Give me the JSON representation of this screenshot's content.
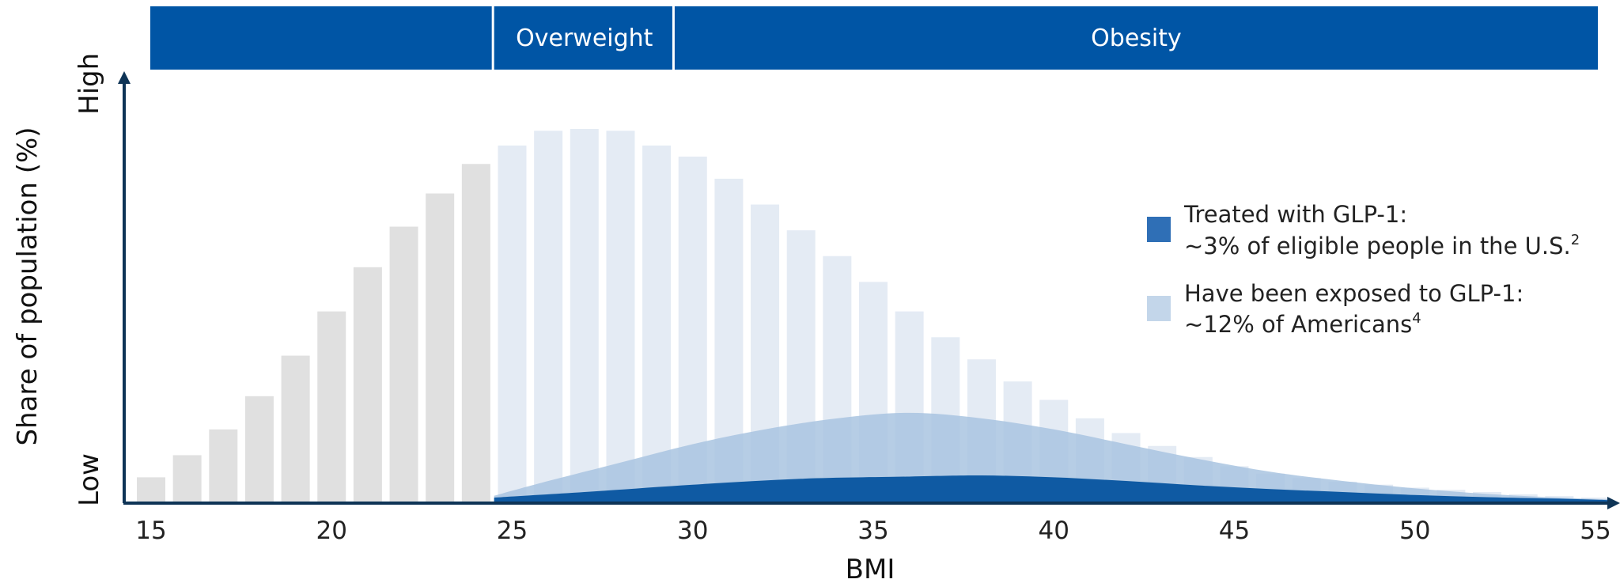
{
  "chart_data": {
    "type": "bar",
    "xlabel": "BMI",
    "ylabel": "Share of population (%)",
    "y_scale_labels": {
      "low": "Low",
      "high": "High"
    },
    "xlim": [
      14.5,
      55.4
    ],
    "ylim": [
      0,
      100
    ],
    "x_ticks": [
      15,
      20,
      25,
      30,
      35,
      40,
      45,
      50,
      55
    ],
    "categories_header": [
      {
        "label": "",
        "from": 14.5,
        "to": 24.5
      },
      {
        "label": "Overweight",
        "from": 24.5,
        "to": 29.5
      },
      {
        "label": "Obesity",
        "from": 29.5,
        "to": 55.4
      }
    ],
    "distribution": {
      "x": [
        15,
        16,
        17,
        18,
        19,
        20,
        21,
        22,
        23,
        24,
        25,
        26,
        27,
        28,
        29,
        30,
        31,
        32,
        33,
        34,
        35,
        36,
        37,
        38,
        39,
        40,
        41,
        42,
        43,
        44,
        45,
        46,
        47,
        48,
        49,
        50,
        51,
        52,
        53,
        54,
        55
      ],
      "values": [
        7,
        13,
        20,
        29,
        40,
        52,
        64,
        75,
        84,
        92,
        97,
        101,
        101.5,
        101,
        97,
        94,
        88,
        81,
        74,
        67,
        60,
        52,
        45,
        39,
        33,
        28,
        23,
        19,
        15.5,
        12.5,
        10,
        8,
        6.8,
        5.8,
        5,
        4.2,
        3.6,
        3,
        2.4,
        1.9,
        1.5
      ],
      "colors": {
        "normal": "#e0e0e0",
        "overweight_obesity": "#e4ebf4"
      }
    },
    "series": [
      {
        "name": "Have been exposed to GLP-1:",
        "detail": "~12% of Americans",
        "sup": "4",
        "color": "#a9c4e0",
        "x": [
          24.5,
          26,
          28,
          30,
          32,
          34,
          36,
          38,
          40,
          42,
          44,
          46,
          48,
          50,
          52,
          54,
          55.4
        ],
        "values": [
          2,
          6,
          11,
          16,
          20,
          23,
          24.5,
          23,
          20,
          16,
          12,
          8.5,
          6,
          4,
          2.5,
          1.5,
          1
        ]
      },
      {
        "name": "Treated with GLP-1:",
        "detail": "~3% of eligible people in the U.S.",
        "sup": "2",
        "color": "#0f5aa3",
        "x": [
          24.5,
          27,
          30,
          33,
          36,
          38,
          40,
          42,
          44,
          46,
          48,
          50,
          52,
          54,
          55.4
        ],
        "values": [
          1.5,
          3,
          5,
          6.6,
          7.2,
          7.5,
          7,
          6,
          4.8,
          3.8,
          3,
          2.2,
          1.6,
          1.2,
          0.8
        ]
      }
    ],
    "legend_position": "right",
    "header_color": "#0055a5",
    "axis_color": "#0e3456"
  }
}
